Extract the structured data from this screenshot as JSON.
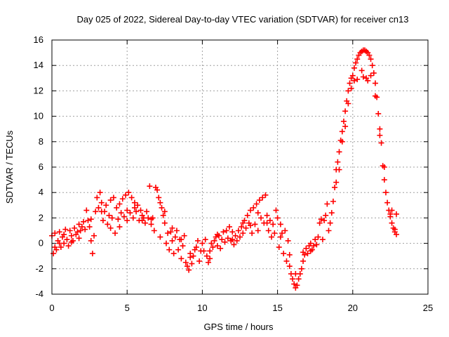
{
  "chart_data": {
    "type": "scatter",
    "title": "Day 025 of 2022, Sidereal Day-to-day VTEC variation (SDTVAR) for receiver cn13",
    "xlabel": "GPS time / hours",
    "ylabel": "SDTVAR / TECUs",
    "xlim": [
      0,
      25
    ],
    "ylim": [
      -4,
      16
    ],
    "xticks": [
      0,
      5,
      10,
      15,
      20,
      25
    ],
    "yticks": [
      -4,
      -2,
      0,
      2,
      4,
      6,
      8,
      10,
      12,
      14,
      16
    ],
    "grid": true,
    "marker": "plus",
    "series_color": "#ff0000",
    "series": [
      {
        "name": "cn13",
        "points": [
          [
            0.0,
            0.6
          ],
          [
            0.1,
            -0.8
          ],
          [
            0.2,
            0.8
          ],
          [
            0.3,
            -0.5
          ],
          [
            0.4,
            0.2
          ],
          [
            0.5,
            0.9
          ],
          [
            0.6,
            -0.3
          ],
          [
            0.7,
            0.5
          ],
          [
            0.8,
            0.0
          ],
          [
            0.9,
            1.1
          ],
          [
            1.0,
            0.3
          ],
          [
            1.1,
            -0.2
          ],
          [
            1.2,
            1.0
          ],
          [
            1.3,
            0.6
          ],
          [
            1.4,
            0.2
          ],
          [
            1.5,
            1.2
          ],
          [
            1.6,
            0.7
          ],
          [
            1.7,
            0.9
          ],
          [
            1.8,
            1.5
          ],
          [
            1.9,
            1.0
          ],
          [
            2.0,
            1.3
          ],
          [
            2.1,
            1.7
          ],
          [
            2.2,
            1.1
          ],
          [
            2.3,
            2.6
          ],
          [
            2.4,
            1.8
          ],
          [
            2.5,
            1.3
          ],
          [
            2.6,
            0.2
          ],
          [
            2.7,
            -0.8
          ],
          [
            2.8,
            0.6
          ],
          [
            2.9,
            2.5
          ],
          [
            3.0,
            3.6
          ],
          [
            3.1,
            2.8
          ],
          [
            3.2,
            4.0
          ],
          [
            3.3,
            3.2
          ],
          [
            3.4,
            1.8
          ],
          [
            3.5,
            2.5
          ],
          [
            3.6,
            3.0
          ],
          [
            3.7,
            1.5
          ],
          [
            3.8,
            2.2
          ],
          [
            3.9,
            3.4
          ],
          [
            4.0,
            2.0
          ],
          [
            4.1,
            3.6
          ],
          [
            4.2,
            0.8
          ],
          [
            4.3,
            2.8
          ],
          [
            4.4,
            1.9
          ],
          [
            4.5,
            3.1
          ],
          [
            4.6,
            2.4
          ],
          [
            4.7,
            3.5
          ],
          [
            4.8,
            2.1
          ],
          [
            4.9,
            3.8
          ],
          [
            5.0,
            2.6
          ],
          [
            5.1,
            4.0
          ],
          [
            5.2,
            2.4
          ],
          [
            5.3,
            3.6
          ],
          [
            5.4,
            2.0
          ],
          [
            5.5,
            3.2
          ],
          [
            5.6,
            2.5
          ],
          [
            5.7,
            3.0
          ],
          [
            5.8,
            1.8
          ],
          [
            5.9,
            2.6
          ],
          [
            6.0,
            2.2
          ],
          [
            6.1,
            2.0
          ],
          [
            6.2,
            1.6
          ],
          [
            6.3,
            2.5
          ],
          [
            6.4,
            2.0
          ],
          [
            6.5,
            4.5
          ],
          [
            6.6,
            1.5
          ],
          [
            6.7,
            2.0
          ],
          [
            6.8,
            1.0
          ],
          [
            6.9,
            4.4
          ],
          [
            7.0,
            4.2
          ],
          [
            7.1,
            3.6
          ],
          [
            7.2,
            0.5
          ],
          [
            7.3,
            2.8
          ],
          [
            7.4,
            2.2
          ],
          [
            7.5,
            1.6
          ],
          [
            7.6,
            0.0
          ],
          [
            7.7,
            0.8
          ],
          [
            7.8,
            -0.5
          ],
          [
            7.9,
            0.9
          ],
          [
            8.0,
            0.2
          ],
          [
            8.1,
            -0.8
          ],
          [
            8.2,
            0.5
          ],
          [
            8.3,
            1.0
          ],
          [
            8.4,
            -0.5
          ],
          [
            8.5,
            0.3
          ],
          [
            8.6,
            -1.2
          ],
          [
            8.7,
            -0.2
          ],
          [
            8.8,
            0.6
          ],
          [
            8.9,
            -1.5
          ],
          [
            9.0,
            -1.8
          ],
          [
            9.1,
            -2.1
          ],
          [
            9.2,
            -0.8
          ],
          [
            9.3,
            -1.6
          ],
          [
            9.4,
            -1.0
          ],
          [
            9.5,
            -0.5
          ],
          [
            9.6,
            -0.3
          ],
          [
            9.7,
            0.2
          ],
          [
            9.8,
            -1.4
          ],
          [
            9.9,
            -0.6
          ],
          [
            10.0,
            0.0
          ],
          [
            10.1,
            -0.6
          ],
          [
            10.2,
            0.3
          ],
          [
            10.3,
            -1.0
          ],
          [
            10.4,
            -1.5
          ],
          [
            10.5,
            -1.2
          ],
          [
            10.6,
            0.0
          ],
          [
            10.7,
            -0.3
          ],
          [
            10.8,
            0.2
          ],
          [
            10.9,
            0.5
          ],
          [
            11.0,
            -0.2
          ],
          [
            11.1,
            0.6
          ],
          [
            11.2,
            -0.4
          ],
          [
            11.3,
            0.3
          ],
          [
            11.4,
            0.9
          ],
          [
            11.5,
            0.1
          ],
          [
            11.6,
            1.0
          ],
          [
            11.7,
            0.4
          ],
          [
            11.8,
            1.3
          ],
          [
            11.9,
            0.2
          ],
          [
            12.0,
            0.9
          ],
          [
            12.1,
            -0.1
          ],
          [
            12.2,
            0.6
          ],
          [
            12.3,
            0.2
          ],
          [
            12.4,
            1.0
          ],
          [
            12.5,
            0.5
          ],
          [
            12.6,
            1.3
          ],
          [
            12.7,
            0.8
          ],
          [
            12.8,
            1.8
          ],
          [
            12.9,
            1.2
          ],
          [
            13.0,
            2.2
          ],
          [
            13.1,
            1.6
          ],
          [
            13.2,
            2.6
          ],
          [
            13.3,
            0.8
          ],
          [
            13.4,
            2.8
          ],
          [
            13.5,
            1.5
          ],
          [
            13.6,
            3.1
          ],
          [
            13.7,
            1.0
          ],
          [
            13.8,
            3.4
          ],
          [
            13.9,
            2.0
          ],
          [
            14.0,
            3.6
          ],
          [
            14.1,
            1.6
          ],
          [
            14.2,
            3.8
          ],
          [
            14.3,
            2.2
          ],
          [
            14.4,
            1.0
          ],
          [
            14.5,
            1.8
          ],
          [
            14.6,
            0.5
          ],
          [
            14.7,
            1.5
          ],
          [
            14.8,
            0.8
          ],
          [
            14.9,
            2.6
          ],
          [
            15.0,
            2.0
          ],
          [
            15.1,
            -0.3
          ],
          [
            15.2,
            1.5
          ],
          [
            15.3,
            0.8
          ],
          [
            15.4,
            -0.8
          ],
          [
            15.5,
            1.0
          ],
          [
            15.6,
            -1.4
          ],
          [
            15.7,
            0.2
          ],
          [
            15.8,
            -1.8
          ],
          [
            15.9,
            -2.4
          ],
          [
            16.0,
            -2.8
          ],
          [
            16.1,
            -3.2
          ],
          [
            16.2,
            -3.5
          ],
          [
            16.3,
            -3.3
          ],
          [
            16.4,
            -2.8
          ],
          [
            16.5,
            -2.4
          ],
          [
            16.6,
            -2.0
          ],
          [
            16.7,
            -1.4
          ],
          [
            16.8,
            -0.9
          ],
          [
            16.9,
            -0.4
          ],
          [
            17.0,
            -0.8
          ],
          [
            17.1,
            -0.2
          ],
          [
            17.2,
            0.0
          ],
          [
            17.3,
            -0.5
          ],
          [
            17.4,
            -0.2
          ],
          [
            17.5,
            0.3
          ],
          [
            17.6,
            -0.1
          ],
          [
            17.7,
            0.5
          ],
          [
            17.8,
            1.6
          ],
          [
            17.9,
            1.9
          ],
          [
            18.0,
            0.3
          ],
          [
            18.1,
            1.8
          ],
          [
            18.2,
            2.2
          ],
          [
            18.3,
            3.1
          ],
          [
            18.4,
            1.0
          ],
          [
            18.5,
            1.6
          ],
          [
            18.6,
            2.4
          ],
          [
            18.7,
            3.3
          ],
          [
            18.8,
            4.4
          ],
          [
            18.9,
            5.8
          ],
          [
            19.0,
            6.4
          ],
          [
            19.1,
            7.2
          ],
          [
            19.2,
            8.1
          ],
          [
            19.3,
            8.8
          ],
          [
            19.4,
            9.6
          ],
          [
            19.5,
            10.4
          ],
          [
            19.6,
            11.2
          ],
          [
            19.7,
            12.0
          ],
          [
            19.8,
            12.6
          ],
          [
            19.9,
            13.0
          ],
          [
            20.0,
            13.2
          ],
          [
            20.1,
            13.8
          ],
          [
            20.2,
            14.2
          ],
          [
            20.3,
            14.5
          ],
          [
            20.4,
            14.8
          ],
          [
            20.5,
            15.0
          ],
          [
            20.6,
            15.1
          ],
          [
            20.7,
            15.2
          ],
          [
            20.8,
            15.2
          ],
          [
            20.9,
            15.1
          ],
          [
            21.0,
            15.0
          ],
          [
            21.1,
            14.8
          ],
          [
            21.2,
            14.5
          ],
          [
            21.3,
            14.0
          ],
          [
            21.4,
            13.4
          ],
          [
            21.5,
            12.6
          ],
          [
            21.6,
            11.5
          ],
          [
            21.7,
            10.2
          ],
          [
            21.8,
            9.0
          ],
          [
            21.9,
            7.9
          ],
          [
            22.0,
            6.1
          ],
          [
            22.1,
            5.0
          ],
          [
            22.2,
            4.0
          ],
          [
            22.3,
            3.2
          ],
          [
            22.4,
            2.6
          ],
          [
            22.5,
            2.1
          ],
          [
            22.6,
            1.6
          ],
          [
            22.7,
            1.2
          ],
          [
            22.8,
            0.9
          ],
          [
            22.9,
            0.7
          ],
          [
            0.2,
            -0.3
          ],
          [
            0.5,
            0.0
          ],
          [
            0.8,
            0.7
          ],
          [
            1.3,
            0.1
          ],
          [
            1.8,
            0.4
          ],
          [
            2.6,
            1.9
          ],
          [
            3.3,
            2.5
          ],
          [
            3.9,
            1.2
          ],
          [
            4.5,
            1.3
          ],
          [
            5.0,
            1.8
          ],
          [
            5.5,
            2.8
          ],
          [
            6.0,
            1.8
          ],
          [
            6.6,
            1.9
          ],
          [
            7.2,
            3.2
          ],
          [
            7.5,
            2.5
          ],
          [
            8.0,
            1.2
          ],
          [
            8.6,
            0.3
          ],
          [
            9.2,
            -1.1
          ],
          [
            10.5,
            -0.6
          ],
          [
            11.0,
            0.7
          ],
          [
            12.0,
            0.3
          ],
          [
            12.7,
            1.6
          ],
          [
            13.2,
            1.4
          ],
          [
            13.7,
            2.4
          ],
          [
            14.3,
            1.6
          ],
          [
            15.2,
            0.5
          ],
          [
            15.8,
            -0.9
          ],
          [
            16.2,
            -2.4
          ],
          [
            16.7,
            -0.7
          ],
          [
            17.2,
            -0.6
          ],
          [
            19.1,
            5.8
          ],
          [
            19.5,
            9.2
          ],
          [
            19.9,
            12.2
          ],
          [
            20.3,
            12.9
          ],
          [
            20.7,
            13.1
          ],
          [
            20.9,
            13.0
          ],
          [
            21.2,
            13.2
          ],
          [
            21.5,
            11.6
          ],
          [
            21.8,
            8.5
          ],
          [
            22.1,
            6.0
          ],
          [
            22.6,
            2.6
          ],
          [
            22.9,
            2.3
          ],
          [
            22.8,
            1.1
          ],
          [
            22.5,
            2.3
          ],
          [
            21.0,
            12.8
          ],
          [
            20.6,
            13.6
          ],
          [
            20.1,
            12.8
          ],
          [
            19.7,
            11.0
          ],
          [
            19.3,
            8.0
          ],
          [
            18.9,
            4.8
          ]
        ]
      }
    ]
  }
}
